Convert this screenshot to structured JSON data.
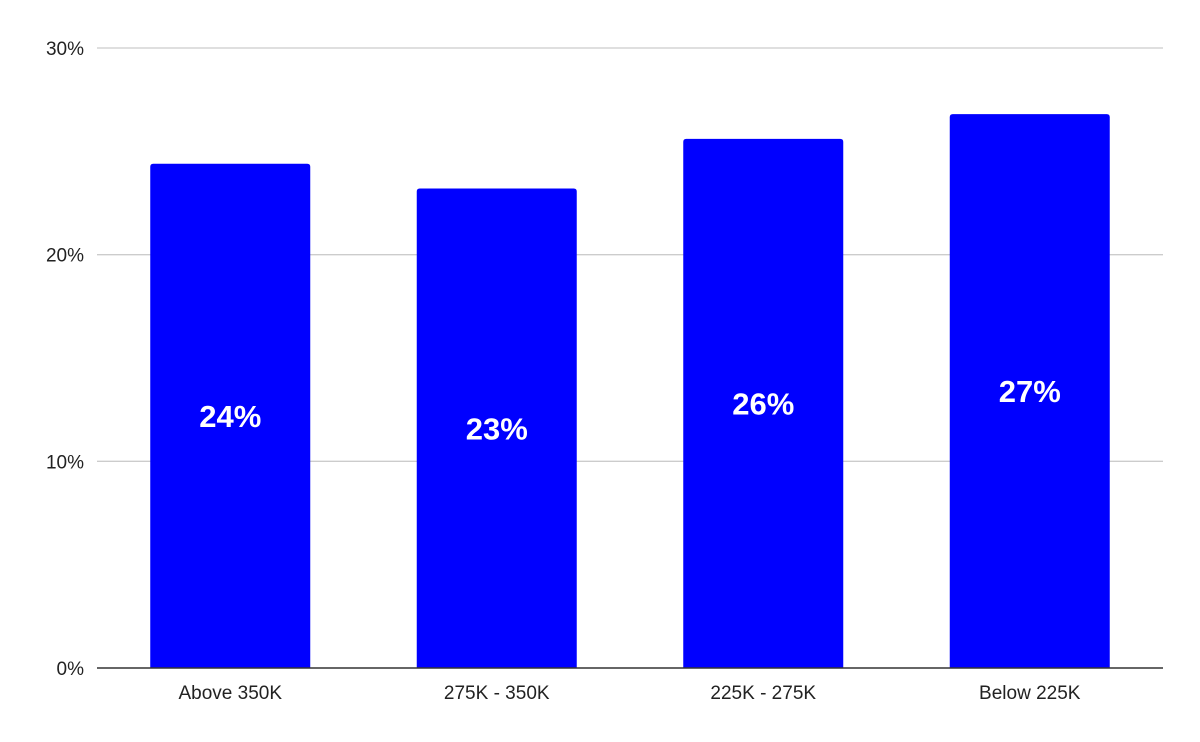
{
  "chart_data": {
    "type": "bar",
    "categories": [
      "Above 350K",
      "275K - 350K",
      "225K - 275K",
      "Below 225K"
    ],
    "values": [
      24.4,
      23.2,
      25.6,
      26.8
    ],
    "data_labels": [
      "24%",
      "23%",
      "26%",
      "27%"
    ],
    "yticks": [
      0,
      10,
      20,
      30
    ],
    "ytick_labels": [
      "0%",
      "10%",
      "20%",
      "30%"
    ],
    "ylim": [
      0,
      30
    ],
    "grid": true,
    "legend": "none",
    "bar_color": "#0000ff"
  }
}
